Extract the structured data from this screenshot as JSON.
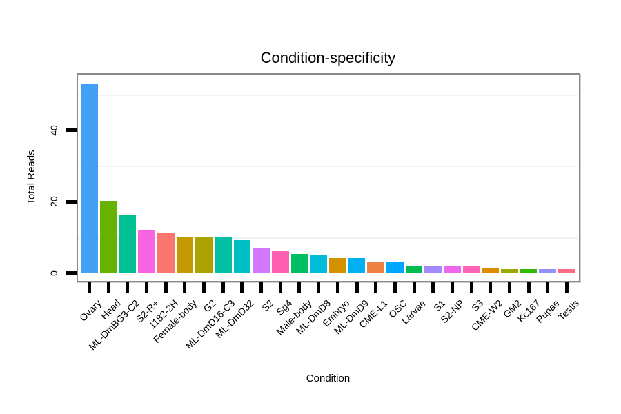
{
  "chart_data": {
    "type": "bar",
    "title": "Condition-specificity",
    "xlabel": "Condition",
    "ylabel": "Total Reads",
    "ylim": [
      0,
      55
    ],
    "yticks": [
      0,
      20,
      40
    ],
    "ytick_labels": [
      "0",
      "20",
      "40"
    ],
    "minor_gridlines": [
      10,
      30,
      50
    ],
    "grid": "minor-horizontal-only",
    "legend": "none",
    "categories": [
      "Ovary",
      "Head",
      "ML-DmBG3-C2",
      "S2-R+",
      "1182-2H",
      "Female-body",
      "G2",
      "ML-DmD16-C3",
      "ML-DmD32",
      "S2",
      "Sg4",
      "Male-body",
      "ML-DmD8",
      "Embryo",
      "ML-DmD9",
      "CME-L1",
      "OSC",
      "Larvae",
      "S1",
      "S2-NP",
      "S3",
      "CME-W2",
      "GM2",
      "Kc167",
      "Pupae",
      "Testis"
    ],
    "values": [
      52.9,
      20.2,
      16.2,
      12.1,
      11.2,
      10.2,
      10.2,
      10.2,
      9.2,
      7.1,
      6.0,
      5.3,
      5.2,
      4.2,
      4.2,
      3.1,
      3.0,
      2.0,
      2.0,
      2.0,
      2.0,
      1.2,
      1.1,
      1.1,
      1.0,
      1.0
    ],
    "bar_colors": [
      "#42A1F5",
      "#67B200",
      "#00BF92",
      "#F763E1",
      "#F8766D",
      "#C49A00",
      "#ACA300",
      "#00BFA2",
      "#00BDC6",
      "#D277FF",
      "#FF61B0",
      "#00BE62",
      "#00BCD8",
      "#D29200",
      "#00B0F0",
      "#EE8144",
      "#00A7FF",
      "#00BC51",
      "#A58AFF",
      "#EE68EE",
      "#FF64B8",
      "#DE8C00",
      "#9CA700",
      "#32BB00",
      "#9590FF",
      "#FB6A85"
    ]
  },
  "colors": {
    "panel_frame": "#898989",
    "tick_mark": "#000000",
    "minor_gridline": "#f2f2f2",
    "background": "#ffffff"
  }
}
